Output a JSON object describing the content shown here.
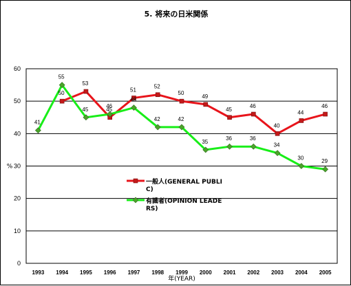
{
  "chart_data": {
    "type": "line",
    "title": "5. 将来の日米関係",
    "xlabel": "年(YEAR)",
    "ylabel": "%",
    "ylim": [
      0,
      60
    ],
    "yticks": [
      "0",
      "10",
      "20",
      "30",
      "40",
      "50",
      "60"
    ],
    "grid": true,
    "legend_position": "center-right",
    "categories": [
      "1993",
      "1994",
      "1995",
      "1996",
      "1997",
      "1998",
      "1999",
      "2000",
      "2001",
      "2002",
      "2003",
      "2004",
      "2005"
    ],
    "series": [
      {
        "name_lines": [
          "一般人(GENERAL PUBLI",
          "C)"
        ],
        "color": "#e8141b",
        "marker": "square",
        "marker_color": "#c41a1a",
        "values": [
          null,
          50,
          53,
          45,
          51,
          52,
          50,
          49,
          45,
          46,
          40,
          44,
          46
        ]
      },
      {
        "name_lines": [
          "有識者(OPINION LEADE",
          "RS)"
        ],
        "color": "#18ee18",
        "marker": "diamond",
        "marker_color": "#4aa52a",
        "values": [
          41,
          55,
          45,
          46,
          48,
          42,
          42,
          35,
          36,
          36,
          34,
          30,
          29
        ]
      }
    ]
  }
}
